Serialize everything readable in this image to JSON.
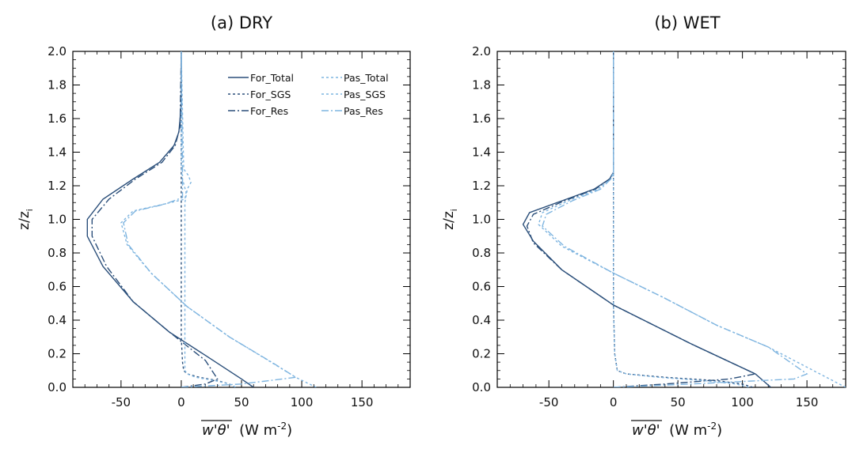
{
  "chart_data": [
    {
      "type": "line",
      "title": "(a)  DRY",
      "xlabel": "w'θ'",
      "xunit": "(W m",
      "xunit_exp": "-2",
      "xunit_close": ")",
      "ylabel": "z/z",
      "ylabel_sub": "i",
      "xlim": [
        -90,
        190
      ],
      "ylim": [
        0,
        2.0
      ],
      "xticks": [
        -50,
        0,
        50,
        100,
        150
      ],
      "yticks": [
        0.0,
        0.2,
        0.4,
        0.6,
        0.8,
        1.0,
        1.2,
        1.4,
        1.6,
        1.8,
        2.0
      ],
      "xtick_labels": [
        "-50",
        "0",
        "50",
        "100",
        "150"
      ],
      "ytick_labels": [
        "0.0",
        "0.2",
        "0.4",
        "0.6",
        "0.8",
        "1.0",
        "1.2",
        "1.4",
        "1.6",
        "1.8",
        "2.0"
      ],
      "legend": "top-right",
      "series": [
        {
          "name": "For_Total",
          "color": "#2b4f7a",
          "dash": "solid",
          "x": [
            60,
            50,
            20,
            -10,
            -40,
            -65,
            -78,
            -78,
            -65,
            -40,
            -18,
            -6,
            -2,
            -1,
            0,
            0
          ],
          "y": [
            0.0,
            0.05,
            0.19,
            0.33,
            0.51,
            0.72,
            0.9,
            1.0,
            1.12,
            1.24,
            1.34,
            1.44,
            1.52,
            1.6,
            1.7,
            2.0
          ]
        },
        {
          "name": "For_SGS",
          "color": "#2b4f7a",
          "dash": "dotted",
          "x": [
            45,
            40,
            30,
            15,
            5,
            2,
            1,
            0,
            0,
            0
          ],
          "y": [
            0.0,
            0.02,
            0.04,
            0.06,
            0.08,
            0.1,
            0.15,
            0.3,
            1.0,
            2.0
          ]
        },
        {
          "name": "For_Res",
          "color": "#2b4f7a",
          "dash": "dashdot",
          "x": [
            0,
            20,
            30,
            20,
            -10,
            -40,
            -62,
            -74,
            -74,
            -60,
            -38,
            -16,
            -5,
            -1,
            0
          ],
          "y": [
            0.0,
            0.02,
            0.05,
            0.16,
            0.33,
            0.51,
            0.72,
            0.9,
            1.0,
            1.12,
            1.24,
            1.34,
            1.44,
            1.55,
            2.0
          ]
        },
        {
          "name": "Pas_Total",
          "color": "#7fb5e0",
          "dash": "dotted",
          "x": [
            112,
            95,
            70,
            40,
            5,
            -25,
            -45,
            -50,
            -40,
            -15,
            3,
            4,
            1,
            0,
            0
          ],
          "y": [
            0.0,
            0.06,
            0.17,
            0.3,
            0.48,
            0.68,
            0.85,
            0.98,
            1.05,
            1.09,
            1.12,
            1.16,
            1.24,
            1.3,
            2.0
          ]
        },
        {
          "name": "Pas_SGS",
          "color": "#7fb5e0",
          "dash": "dotted",
          "x": [
            45,
            40,
            28,
            12,
            5,
            3,
            3,
            3,
            5,
            8,
            6,
            2,
            0
          ],
          "y": [
            0.0,
            0.02,
            0.04,
            0.06,
            0.08,
            0.1,
            0.5,
            1.1,
            1.18,
            1.22,
            1.26,
            1.3,
            2.0
          ]
        },
        {
          "name": "Pas_Res",
          "color": "#7fb5e0",
          "dash": "dashdot",
          "x": [
            0,
            50,
            95,
            75,
            40,
            5,
            -25,
            -44,
            -48,
            -38,
            -14,
            1,
            1,
            0
          ],
          "y": [
            0.0,
            0.02,
            0.06,
            0.15,
            0.3,
            0.48,
            0.68,
            0.85,
            0.98,
            1.05,
            1.09,
            1.13,
            1.3,
            2.0
          ]
        }
      ]
    },
    {
      "type": "line",
      "title": "(b)  WET",
      "xlabel": "w'θ'",
      "xunit": "(W m",
      "xunit_exp": "-2",
      "xunit_close": ")",
      "ylabel": "z/z",
      "ylabel_sub": "i",
      "xlim": [
        -90,
        180
      ],
      "ylim": [
        0,
        2.0
      ],
      "xticks": [
        -50,
        0,
        50,
        100,
        150
      ],
      "yticks": [
        0.0,
        0.2,
        0.4,
        0.6,
        0.8,
        1.0,
        1.2,
        1.4,
        1.6,
        1.8,
        2.0
      ],
      "xtick_labels": [
        "-50",
        "0",
        "50",
        "100",
        "150"
      ],
      "ytick_labels": [
        "0.0",
        "0.2",
        "0.4",
        "0.6",
        "0.8",
        "1.0",
        "1.2",
        "1.4",
        "1.6",
        "1.8",
        "2.0"
      ],
      "legend": "none",
      "series": [
        {
          "name": "For_Total",
          "color": "#2b4f7a",
          "dash": "solid",
          "x": [
            122,
            110,
            60,
            0,
            -40,
            -62,
            -70,
            -65,
            -40,
            -15,
            -3,
            0,
            0
          ],
          "y": [
            0.0,
            0.08,
            0.26,
            0.49,
            0.7,
            0.87,
            0.97,
            1.04,
            1.11,
            1.18,
            1.24,
            1.28,
            2.0
          ]
        },
        {
          "name": "For_SGS",
          "color": "#2b4f7a",
          "dash": "dotted",
          "x": [
            108,
            100,
            80,
            40,
            10,
            3,
            1,
            0,
            0,
            0
          ],
          "y": [
            0.0,
            0.02,
            0.04,
            0.06,
            0.08,
            0.1,
            0.2,
            0.5,
            1.2,
            2.0
          ]
        },
        {
          "name": "For_Res",
          "color": "#2b4f7a",
          "dash": "dashdot",
          "x": [
            0,
            40,
            90,
            110,
            60,
            0,
            -40,
            -62,
            -67,
            -62,
            -38,
            -14,
            -3,
            0,
            0
          ],
          "y": [
            0.0,
            0.02,
            0.05,
            0.08,
            0.26,
            0.49,
            0.7,
            0.86,
            0.96,
            1.03,
            1.11,
            1.18,
            1.24,
            1.28,
            2.0
          ]
        },
        {
          "name": "Pas_Total",
          "color": "#7fb5e0",
          "dash": "dotted",
          "x": [
            180,
            160,
            120,
            80,
            40,
            0,
            -40,
            -58,
            -55,
            -35,
            -12,
            -2,
            0,
            0
          ],
          "y": [
            0.0,
            0.08,
            0.24,
            0.37,
            0.53,
            0.68,
            0.84,
            0.97,
            1.04,
            1.11,
            1.18,
            1.24,
            1.28,
            2.0
          ]
        },
        {
          "name": "Pas_SGS",
          "color": "#7fb5e0",
          "dash": "dotted",
          "x": [
            105,
            95,
            70,
            35,
            10,
            3,
            1,
            0,
            0,
            0
          ],
          "y": [
            0.0,
            0.02,
            0.04,
            0.06,
            0.08,
            0.1,
            0.2,
            0.5,
            1.2,
            2.0
          ]
        },
        {
          "name": "Pas_Res",
          "color": "#7fb5e0",
          "dash": "dashdot",
          "x": [
            0,
            60,
            140,
            150,
            120,
            80,
            40,
            0,
            -38,
            -55,
            -52,
            -32,
            -10,
            -2,
            0,
            0
          ],
          "y": [
            0.0,
            0.02,
            0.05,
            0.08,
            0.24,
            0.37,
            0.53,
            0.68,
            0.84,
            0.96,
            1.03,
            1.11,
            1.18,
            1.24,
            1.28,
            2.0
          ]
        }
      ]
    }
  ]
}
